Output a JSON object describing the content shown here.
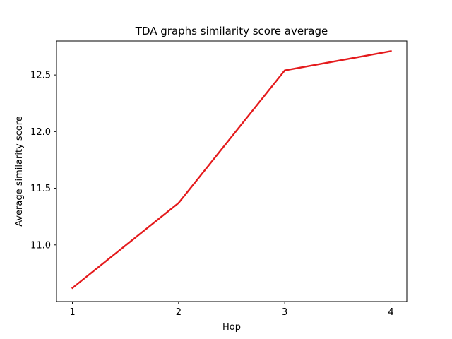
{
  "chart_data": {
    "type": "line",
    "title": "TDA graphs similarity score average",
    "xlabel": "Hop",
    "ylabel": "Average similarity score",
    "x": [
      1,
      2,
      3,
      4
    ],
    "x_ticks": [
      1,
      2,
      3,
      4
    ],
    "x_tick_labels": [
      "1",
      "2",
      "3",
      "4"
    ],
    "xlim": [
      0.85,
      4.15
    ],
    "ylim": [
      10.5,
      12.8
    ],
    "y_ticks": [
      11.0,
      11.5,
      12.0,
      12.5
    ],
    "y_tick_labels": [
      "11.0",
      "11.5",
      "12.0",
      "12.5"
    ],
    "grid": false,
    "legend": "none",
    "series": [
      {
        "values": [
          10.62,
          11.37,
          12.54,
          12.71
        ],
        "color": "#e41a1c"
      }
    ]
  }
}
